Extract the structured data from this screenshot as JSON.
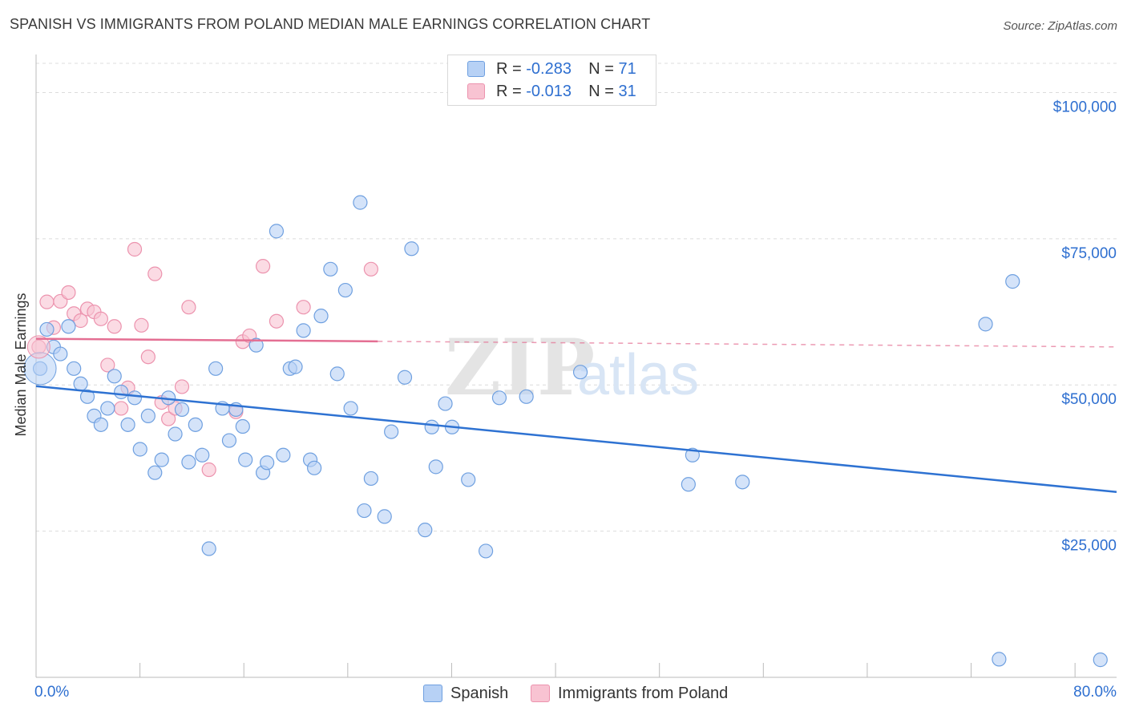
{
  "title": "SPANISH VS IMMIGRANTS FROM POLAND MEDIAN MALE EARNINGS CORRELATION CHART",
  "source": "Source: ZipAtlas.com",
  "legend": {
    "rows": [
      {
        "r_label": "R =",
        "r_value": "-0.283",
        "n_label": "N =",
        "n_value": "71"
      },
      {
        "r_label": "R =",
        "r_value": "-0.013",
        "n_label": "N =",
        "n_value": "31"
      }
    ]
  },
  "watermark": {
    "zip": "ZIP",
    "atlas": "atlas"
  },
  "colors": {
    "spanish_fill": "#b7d1f5",
    "spanish_stroke": "#6fa0e0",
    "spanish_line": "#2e72d2",
    "poland_fill": "#f8c3d2",
    "poland_stroke": "#ec93ae",
    "poland_line": "#e46f93",
    "axis_label": "#2e6fd0",
    "grid": "#dcdcdc"
  },
  "chart_data": {
    "type": "scatter",
    "ylabel": "Median Male Earnings",
    "xlim": [
      0,
      80
    ],
    "ylim": [
      0,
      105000
    ],
    "x_tick_labels": {
      "min": "0.0%",
      "max": "80.0%"
    },
    "y_ticks": [
      {
        "value": 25000,
        "label": "$25,000"
      },
      {
        "value": 50000,
        "label": "$50,000"
      },
      {
        "value": 75000,
        "label": "$75,000"
      },
      {
        "value": 100000,
        "label": "$100,000"
      }
    ],
    "series": [
      {
        "name": "Spanish",
        "trend": {
          "x0": 0,
          "y0": 49800,
          "x1": 80,
          "y1": 31700
        },
        "points": [
          [
            0.3,
            52800
          ],
          [
            0.8,
            59500
          ],
          [
            1.3,
            56500
          ],
          [
            1.8,
            55300
          ],
          [
            2.4,
            60000
          ],
          [
            2.8,
            52800
          ],
          [
            3.3,
            50200
          ],
          [
            3.8,
            48000
          ],
          [
            4.3,
            44700
          ],
          [
            4.8,
            43200
          ],
          [
            5.3,
            46000
          ],
          [
            5.8,
            51500
          ],
          [
            6.3,
            48800
          ],
          [
            6.8,
            43200
          ],
          [
            7.3,
            47800
          ],
          [
            7.7,
            39000
          ],
          [
            8.3,
            44700
          ],
          [
            8.8,
            35000
          ],
          [
            9.3,
            37200
          ],
          [
            9.8,
            47800
          ],
          [
            10.3,
            41600
          ],
          [
            10.8,
            45800
          ],
          [
            11.3,
            36800
          ],
          [
            11.8,
            43200
          ],
          [
            12.3,
            38000
          ],
          [
            12.8,
            22000
          ],
          [
            13.3,
            52800
          ],
          [
            13.8,
            46000
          ],
          [
            14.3,
            40500
          ],
          [
            14.8,
            45800
          ],
          [
            15.3,
            42900
          ],
          [
            15.5,
            37200
          ],
          [
            16.3,
            56800
          ],
          [
            16.8,
            35000
          ],
          [
            17.1,
            36700
          ],
          [
            17.8,
            76300
          ],
          [
            18.3,
            38000
          ],
          [
            18.8,
            52800
          ],
          [
            19.2,
            53100
          ],
          [
            19.8,
            59300
          ],
          [
            20.3,
            37200
          ],
          [
            20.6,
            35800
          ],
          [
            21.1,
            61800
          ],
          [
            21.8,
            69800
          ],
          [
            22.3,
            51900
          ],
          [
            22.9,
            66200
          ],
          [
            23.3,
            46000
          ],
          [
            24.0,
            81200
          ],
          [
            24.3,
            28500
          ],
          [
            24.8,
            34000
          ],
          [
            25.8,
            27500
          ],
          [
            26.3,
            42000
          ],
          [
            27.3,
            51300
          ],
          [
            27.8,
            73300
          ],
          [
            28.8,
            25200
          ],
          [
            29.3,
            42800
          ],
          [
            29.6,
            36000
          ],
          [
            30.3,
            46800
          ],
          [
            30.8,
            42800
          ],
          [
            32.0,
            33800
          ],
          [
            33.3,
            21600
          ],
          [
            34.3,
            47800
          ],
          [
            36.3,
            48000
          ],
          [
            40.3,
            52200
          ],
          [
            48.3,
            33000
          ],
          [
            48.6,
            38000
          ],
          [
            52.3,
            33400
          ],
          [
            70.3,
            60400
          ],
          [
            71.3,
            3100
          ],
          [
            72.3,
            67700
          ],
          [
            78.8,
            3000
          ]
        ]
      },
      {
        "name": "Immigrants from Poland",
        "trend": {
          "x0": 0,
          "y0": 57900,
          "x1": 80,
          "y1": 56500,
          "solid_to_x": 25.3
        },
        "points": [
          [
            0.2,
            56500
          ],
          [
            0.8,
            64200
          ],
          [
            1.3,
            59800
          ],
          [
            1.8,
            64300
          ],
          [
            2.4,
            65800
          ],
          [
            2.8,
            62200
          ],
          [
            3.3,
            61000
          ],
          [
            3.8,
            63000
          ],
          [
            4.3,
            62500
          ],
          [
            4.8,
            61300
          ],
          [
            5.3,
            53400
          ],
          [
            5.8,
            60000
          ],
          [
            6.3,
            46000
          ],
          [
            6.8,
            49500
          ],
          [
            7.3,
            73200
          ],
          [
            7.8,
            60200
          ],
          [
            8.3,
            54800
          ],
          [
            8.8,
            69000
          ],
          [
            9.3,
            47000
          ],
          [
            9.8,
            44200
          ],
          [
            10.3,
            46000
          ],
          [
            10.8,
            49700
          ],
          [
            11.3,
            63300
          ],
          [
            12.8,
            35500
          ],
          [
            14.8,
            45400
          ],
          [
            15.3,
            57400
          ],
          [
            15.8,
            58400
          ],
          [
            16.8,
            70300
          ],
          [
            17.8,
            60900
          ],
          [
            19.8,
            63300
          ],
          [
            24.8,
            69800
          ]
        ]
      }
    ]
  }
}
